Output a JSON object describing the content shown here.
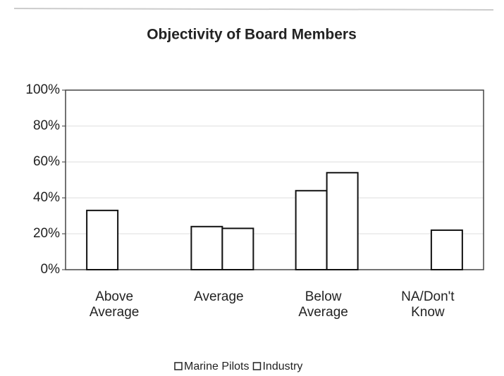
{
  "chart_data": {
    "type": "bar",
    "title": "Objectivity of Board Members",
    "categories": [
      "Above Average",
      "Average",
      "Below Average",
      "NA/Don't Know"
    ],
    "series": [
      {
        "name": "Marine Pilots",
        "color": "#ffffff",
        "values": [
          33,
          24,
          44,
          0
        ]
      },
      {
        "name": "Industry",
        "color": "#ffffff",
        "values": [
          0,
          23,
          54,
          22
        ]
      }
    ],
    "ylim": [
      0,
      100
    ],
    "yticks": [
      {
        "value": 0,
        "label": "0%"
      },
      {
        "value": 20,
        "label": "20%"
      },
      {
        "value": 40,
        "label": "40%"
      },
      {
        "value": 60,
        "label": "60%"
      },
      {
        "value": 80,
        "label": "80%"
      },
      {
        "value": 100,
        "label": "100%"
      }
    ],
    "grid": true,
    "legend": "bottom"
  }
}
